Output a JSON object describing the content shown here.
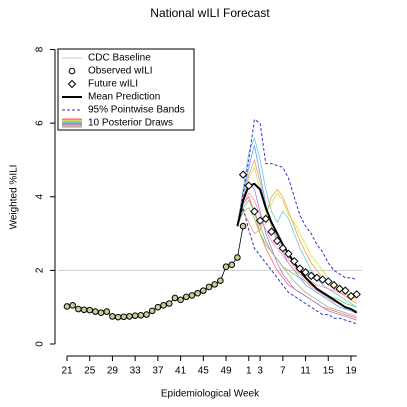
{
  "chart_data": {
    "type": "line",
    "title": "National wILI Forecast",
    "x_label": "Epidemiological Week",
    "y_label": "Weighted %ILI",
    "categories": [
      "21",
      null,
      null,
      null,
      "25",
      null,
      null,
      null,
      "29",
      null,
      null,
      null,
      "33",
      null,
      null,
      null,
      "37",
      null,
      null,
      null,
      "41",
      null,
      null,
      null,
      "45",
      null,
      null,
      null,
      "49",
      null,
      null,
      null,
      "1",
      null,
      "3",
      null,
      null,
      null,
      "7",
      null,
      null,
      null,
      "11",
      null,
      null,
      null,
      "15",
      null,
      null,
      null,
      "19",
      null
    ],
    "ylim": [
      0,
      8
    ],
    "yticks": [
      0,
      2,
      4,
      6,
      8
    ],
    "baseline": {
      "name": "CDC Baseline",
      "value": 2,
      "color": "#cccccc"
    },
    "observed": {
      "name": "Observed wILI",
      "color": "#000000",
      "values": [
        1.02,
        1.05,
        0.95,
        0.93,
        0.92,
        0.88,
        0.85,
        0.88,
        0.75,
        0.73,
        0.74,
        0.75,
        0.77,
        0.78,
        0.8,
        0.9,
        1.0,
        1.05,
        1.1,
        1.25,
        1.2,
        1.28,
        1.32,
        1.38,
        1.45,
        1.55,
        1.62,
        1.72,
        2.1,
        2.15,
        2.35,
        3.2,
        null,
        null,
        null,
        null,
        null,
        null,
        null,
        null,
        null,
        null,
        null,
        null,
        null,
        null,
        null,
        null,
        null,
        null,
        null,
        null
      ]
    },
    "future": {
      "name": "Future wILI",
      "color": "#000000",
      "values": [
        null,
        null,
        null,
        null,
        null,
        null,
        null,
        null,
        null,
        null,
        null,
        null,
        null,
        null,
        null,
        null,
        null,
        null,
        null,
        null,
        null,
        null,
        null,
        null,
        null,
        null,
        null,
        null,
        null,
        null,
        null,
        4.6,
        4.3,
        3.6,
        3.35,
        3.4,
        3.05,
        2.8,
        2.6,
        2.45,
        2.25,
        2.05,
        1.95,
        1.85,
        1.8,
        1.75,
        1.7,
        1.6,
        1.5,
        1.45,
        1.3,
        1.35
      ]
    },
    "mean": {
      "name": "Mean Prediction",
      "color": "#000000",
      "values": [
        null,
        null,
        null,
        null,
        null,
        null,
        null,
        null,
        null,
        null,
        null,
        null,
        null,
        null,
        null,
        null,
        null,
        null,
        null,
        null,
        null,
        null,
        null,
        null,
        null,
        null,
        null,
        null,
        null,
        null,
        3.2,
        3.9,
        4.3,
        4.35,
        4.2,
        3.7,
        3.3,
        3.0,
        2.7,
        2.45,
        2.2,
        2.0,
        1.8,
        1.65,
        1.5,
        1.4,
        1.3,
        1.2,
        1.1,
        1.0,
        0.95,
        0.85
      ]
    },
    "bands": {
      "name": "95% Pointwise Bands",
      "color": "#3333cc",
      "upper": [
        null,
        null,
        null,
        null,
        null,
        null,
        null,
        null,
        null,
        null,
        null,
        null,
        null,
        null,
        null,
        null,
        null,
        null,
        null,
        null,
        null,
        null,
        null,
        null,
        null,
        null,
        null,
        null,
        null,
        null,
        3.2,
        4.1,
        5.0,
        6.1,
        6.0,
        4.9,
        4.9,
        4.85,
        4.8,
        4.5,
        4.0,
        3.5,
        3.2,
        3.0,
        2.7,
        2.5,
        2.2,
        2.0,
        1.9,
        1.8,
        1.8,
        1.75
      ],
      "lower": [
        null,
        null,
        null,
        null,
        null,
        null,
        null,
        null,
        null,
        null,
        null,
        null,
        null,
        null,
        null,
        null,
        null,
        null,
        null,
        null,
        null,
        null,
        null,
        null,
        null,
        null,
        null,
        null,
        null,
        null,
        3.2,
        3.7,
        3.1,
        2.6,
        2.4,
        2.2,
        2.0,
        1.8,
        1.6,
        1.4,
        1.3,
        1.2,
        1.1,
        1.0,
        0.9,
        0.8,
        0.8,
        0.7,
        0.7,
        0.65,
        0.6,
        0.55
      ]
    },
    "draws": {
      "name": "10 Posterior Draws",
      "series": [
        {
          "color": "#ff6666",
          "values": [
            null,
            null,
            null,
            null,
            null,
            null,
            null,
            null,
            null,
            null,
            null,
            null,
            null,
            null,
            null,
            null,
            null,
            null,
            null,
            null,
            null,
            null,
            null,
            null,
            null,
            null,
            null,
            null,
            null,
            null,
            3.2,
            3.8,
            4.0,
            3.6,
            3.0,
            2.6,
            2.3,
            2.0,
            1.8,
            1.6,
            1.5,
            1.4,
            1.3,
            1.2,
            1.1,
            1.0,
            0.95,
            0.9,
            0.85,
            0.8,
            0.75,
            0.7
          ]
        },
        {
          "color": "#ff9933",
          "values": [
            null,
            null,
            null,
            null,
            null,
            null,
            null,
            null,
            null,
            null,
            null,
            null,
            null,
            null,
            null,
            null,
            null,
            null,
            null,
            null,
            null,
            null,
            null,
            null,
            null,
            null,
            null,
            null,
            null,
            null,
            3.2,
            3.6,
            3.3,
            3.0,
            3.1,
            3.5,
            4.0,
            4.2,
            4.0,
            3.6,
            3.2,
            2.8,
            2.5,
            2.2,
            2.0,
            1.8,
            1.6,
            1.5,
            1.4,
            1.3,
            1.2,
            1.1
          ]
        },
        {
          "color": "#dddd44",
          "values": [
            null,
            null,
            null,
            null,
            null,
            null,
            null,
            null,
            null,
            null,
            null,
            null,
            null,
            null,
            null,
            null,
            null,
            null,
            null,
            null,
            null,
            null,
            null,
            null,
            null,
            null,
            null,
            null,
            null,
            null,
            3.2,
            3.9,
            4.5,
            4.8,
            4.2,
            3.6,
            3.8,
            4.1,
            3.9,
            3.5,
            3.3,
            3.0,
            2.7,
            2.4,
            2.2,
            2.0,
            1.8,
            1.6,
            1.5,
            1.4,
            1.3,
            1.2
          ]
        },
        {
          "color": "#66cc66",
          "values": [
            null,
            null,
            null,
            null,
            null,
            null,
            null,
            null,
            null,
            null,
            null,
            null,
            null,
            null,
            null,
            null,
            null,
            null,
            null,
            null,
            null,
            null,
            null,
            null,
            null,
            null,
            null,
            null,
            null,
            null,
            3.2,
            3.7,
            3.9,
            3.6,
            3.2,
            2.8,
            2.5,
            2.3,
            2.1,
            2.0,
            1.9,
            1.8,
            1.7,
            1.6,
            1.5,
            1.4,
            1.3,
            1.25,
            1.2,
            1.1,
            1.05,
            1.0
          ]
        },
        {
          "color": "#66cccc",
          "values": [
            null,
            null,
            null,
            null,
            null,
            null,
            null,
            null,
            null,
            null,
            null,
            null,
            null,
            null,
            null,
            null,
            null,
            null,
            null,
            null,
            null,
            null,
            null,
            null,
            null,
            null,
            null,
            null,
            null,
            null,
            3.2,
            4.2,
            5.2,
            5.6,
            5.0,
            4.2,
            3.6,
            3.3,
            3.6,
            3.4,
            3.0,
            2.6,
            2.3,
            2.0,
            1.8,
            1.6,
            1.5,
            1.4,
            1.3,
            1.2,
            1.1,
            1.0
          ]
        },
        {
          "color": "#6699ff",
          "values": [
            null,
            null,
            null,
            null,
            null,
            null,
            null,
            null,
            null,
            null,
            null,
            null,
            null,
            null,
            null,
            null,
            null,
            null,
            null,
            null,
            null,
            null,
            null,
            null,
            null,
            null,
            null,
            null,
            null,
            null,
            3.2,
            4.0,
            4.8,
            5.4,
            4.6,
            3.8,
            3.2,
            2.8,
            2.5,
            2.2,
            2.0,
            1.8,
            1.6,
            1.5,
            1.4,
            1.3,
            1.2,
            1.1,
            1.0,
            0.95,
            0.9,
            0.85
          ]
        },
        {
          "color": "#aa77dd",
          "values": [
            null,
            null,
            null,
            null,
            null,
            null,
            null,
            null,
            null,
            null,
            null,
            null,
            null,
            null,
            null,
            null,
            null,
            null,
            null,
            null,
            null,
            null,
            null,
            null,
            null,
            null,
            null,
            null,
            null,
            null,
            3.2,
            3.9,
            4.4,
            4.2,
            3.6,
            3.0,
            2.6,
            2.2,
            1.9,
            1.7,
            1.5,
            1.4,
            1.3,
            1.2,
            1.1,
            1.0,
            0.9,
            0.85,
            0.8,
            0.75,
            0.7,
            0.65
          ]
        },
        {
          "color": "#ff88cc",
          "values": [
            null,
            null,
            null,
            null,
            null,
            null,
            null,
            null,
            null,
            null,
            null,
            null,
            null,
            null,
            null,
            null,
            null,
            null,
            null,
            null,
            null,
            null,
            null,
            null,
            null,
            null,
            null,
            null,
            null,
            null,
            3.2,
            3.8,
            4.1,
            3.9,
            3.5,
            3.1,
            2.8,
            2.6,
            2.4,
            2.2,
            2.0,
            1.9,
            1.8,
            1.7,
            1.6,
            1.55,
            1.5,
            1.45,
            1.4,
            1.35,
            1.3,
            1.25
          ]
        },
        {
          "color": "#99bb77",
          "values": [
            null,
            null,
            null,
            null,
            null,
            null,
            null,
            null,
            null,
            null,
            null,
            null,
            null,
            null,
            null,
            null,
            null,
            null,
            null,
            null,
            null,
            null,
            null,
            null,
            null,
            null,
            null,
            null,
            null,
            null,
            3.2,
            3.6,
            3.7,
            3.4,
            3.0,
            2.7,
            2.5,
            2.3,
            2.1,
            1.9,
            1.7,
            1.55,
            1.4,
            1.3,
            1.2,
            1.1,
            1.0,
            0.95,
            0.9,
            0.85,
            0.8,
            0.75
          ]
        },
        {
          "color": "#ee9988",
          "values": [
            null,
            null,
            null,
            null,
            null,
            null,
            null,
            null,
            null,
            null,
            null,
            null,
            null,
            null,
            null,
            null,
            null,
            null,
            null,
            null,
            null,
            null,
            null,
            null,
            null,
            null,
            null,
            null,
            null,
            null,
            3.2,
            4.0,
            4.6,
            5.0,
            4.4,
            3.7,
            3.2,
            2.9,
            2.6,
            2.3,
            2.1,
            1.9,
            1.7,
            1.55,
            1.45,
            1.35,
            1.25,
            1.15,
            1.1,
            1.0,
            0.95,
            0.9
          ]
        }
      ]
    }
  }
}
